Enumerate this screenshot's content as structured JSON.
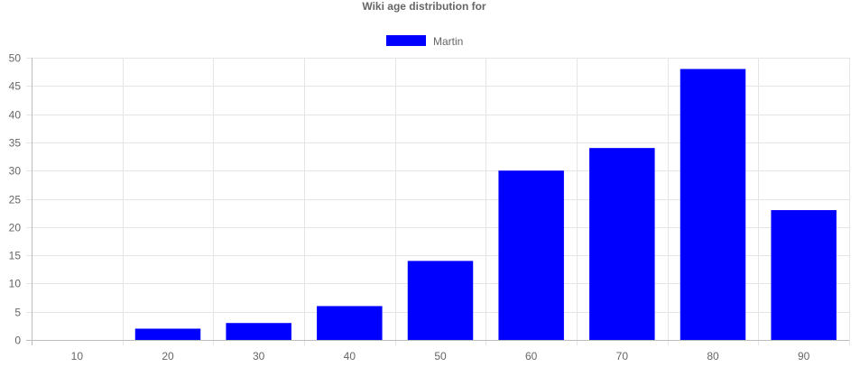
{
  "chart_data": {
    "type": "bar",
    "title": "Wiki age distribution for",
    "categories": [
      "10",
      "20",
      "30",
      "40",
      "50",
      "60",
      "70",
      "80",
      "90"
    ],
    "series": [
      {
        "name": "Martin",
        "color": "#0000ff",
        "values": [
          0,
          2,
          3,
          6,
          14,
          30,
          34,
          48,
          23
        ]
      }
    ],
    "ylim": [
      0,
      50
    ],
    "yticks": [
      0,
      5,
      10,
      15,
      20,
      25,
      30,
      35,
      40,
      45,
      50
    ],
    "grid": true,
    "legend_position": "top-center",
    "xlabel": "",
    "ylabel": ""
  }
}
